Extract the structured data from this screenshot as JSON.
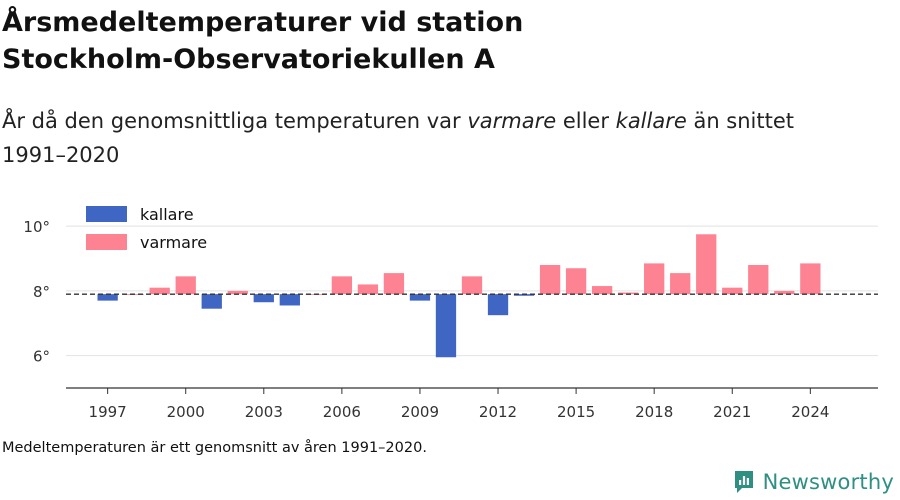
{
  "header": {
    "title_line1": "Årsmedeltemperaturer vid station",
    "title_line2": "Stockholm-Observatoriekullen A",
    "subtitle_part1": "År då den genomsnittliga temperaturen var ",
    "subtitle_warm": "varmare",
    "subtitle_part2": " eller ",
    "subtitle_cold": "kallare",
    "subtitle_part3": " än snittet",
    "subtitle_line2": "1991–2020"
  },
  "footnote": "Medeltemperaturen är ett genomsnitt av åren 1991–2020.",
  "brand": {
    "name": "Newsworthy",
    "icon": "newsworthy-logo-icon",
    "color": "#2f8f82"
  },
  "chart_data": {
    "type": "bar",
    "baseline": 7.9,
    "ylim": [
      5,
      10.5
    ],
    "yticks": [
      6,
      8,
      10
    ],
    "ytick_labels": [
      "6°",
      "8°",
      "10°"
    ],
    "xlim": [
      1995.4,
      2026.6
    ],
    "xticks": [
      1997,
      2000,
      2003,
      2006,
      2009,
      2012,
      2015,
      2018,
      2021,
      2024
    ],
    "xtick_labels": [
      "1997",
      "2000",
      "2003",
      "2006",
      "2009",
      "2012",
      "2015",
      "2018",
      "2021",
      "2024"
    ],
    "grid": true,
    "legend_position": "top-left",
    "series": [
      {
        "name": "kallare",
        "color": "#4066c4"
      },
      {
        "name": "varmare",
        "color": "#fe8392"
      }
    ],
    "data": [
      {
        "year": 1997,
        "value": 7.7
      },
      {
        "year": 1998,
        "value": 7.9
      },
      {
        "year": 1999,
        "value": 8.1
      },
      {
        "year": 2000,
        "value": 8.45
      },
      {
        "year": 2001,
        "value": 7.45
      },
      {
        "year": 2002,
        "value": 8.0
      },
      {
        "year": 2003,
        "value": 7.65
      },
      {
        "year": 2004,
        "value": 7.55
      },
      {
        "year": 2005,
        "value": 7.9
      },
      {
        "year": 2006,
        "value": 8.45
      },
      {
        "year": 2007,
        "value": 8.2
      },
      {
        "year": 2008,
        "value": 8.55
      },
      {
        "year": 2009,
        "value": 7.7
      },
      {
        "year": 2010,
        "value": 5.95
      },
      {
        "year": 2011,
        "value": 8.45
      },
      {
        "year": 2012,
        "value": 7.25
      },
      {
        "year": 2013,
        "value": 7.85
      },
      {
        "year": 2014,
        "value": 8.8
      },
      {
        "year": 2015,
        "value": 8.7
      },
      {
        "year": 2016,
        "value": 8.15
      },
      {
        "year": 2017,
        "value": 7.95
      },
      {
        "year": 2018,
        "value": 8.85
      },
      {
        "year": 2019,
        "value": 8.55
      },
      {
        "year": 2020,
        "value": 9.75
      },
      {
        "year": 2021,
        "value": 8.1
      },
      {
        "year": 2022,
        "value": 8.8
      },
      {
        "year": 2023,
        "value": 8.0
      },
      {
        "year": 2024,
        "value": 8.85
      }
    ]
  }
}
